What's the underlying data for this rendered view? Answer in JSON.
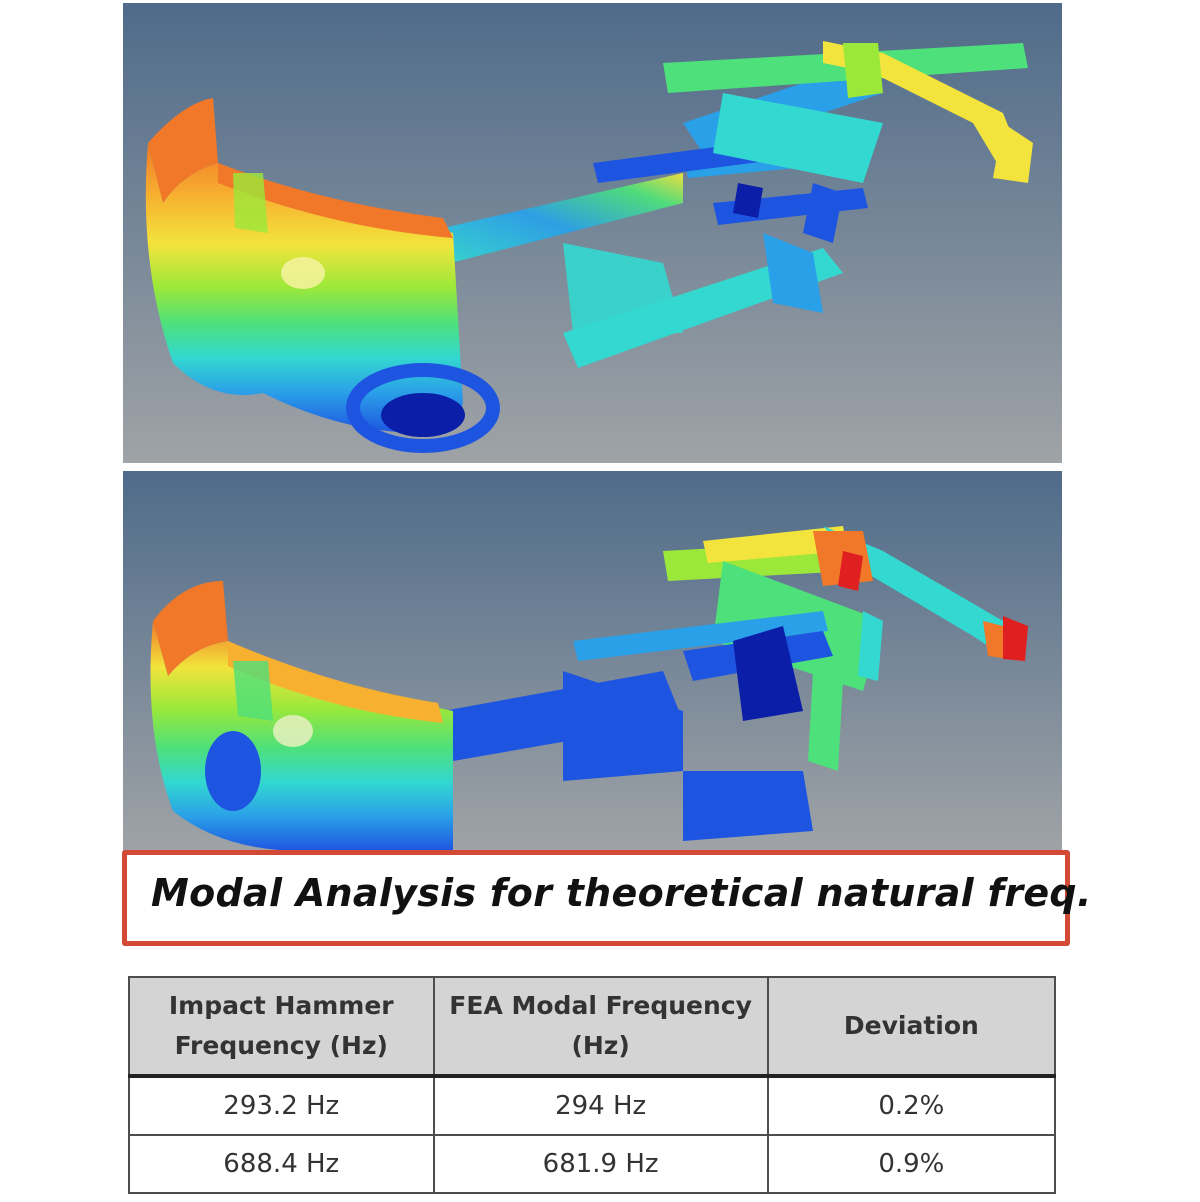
{
  "figure": {
    "caption": "Modal Analysis for theoretical natural freq.",
    "colors": {
      "background_top": "#4f6b8a",
      "background_bottom": "#9fa3a6",
      "caption_border": "#d24a35",
      "contour": [
        "#0a1ea8",
        "#1e55e0",
        "#2aa0e8",
        "#33d8d0",
        "#4ee07a",
        "#9be83a",
        "#f2e43c",
        "#f7b030",
        "#f07828",
        "#e02020"
      ]
    }
  },
  "table": {
    "columns": [
      "Impact Hammer Frequency (Hz)",
      "FEA Modal Frequency (Hz)",
      "Deviation"
    ],
    "rows": [
      [
        "293.2 Hz",
        "294 Hz",
        "0.2%"
      ],
      [
        "688.4 Hz",
        "681.9 Hz",
        "0.9%"
      ]
    ]
  }
}
